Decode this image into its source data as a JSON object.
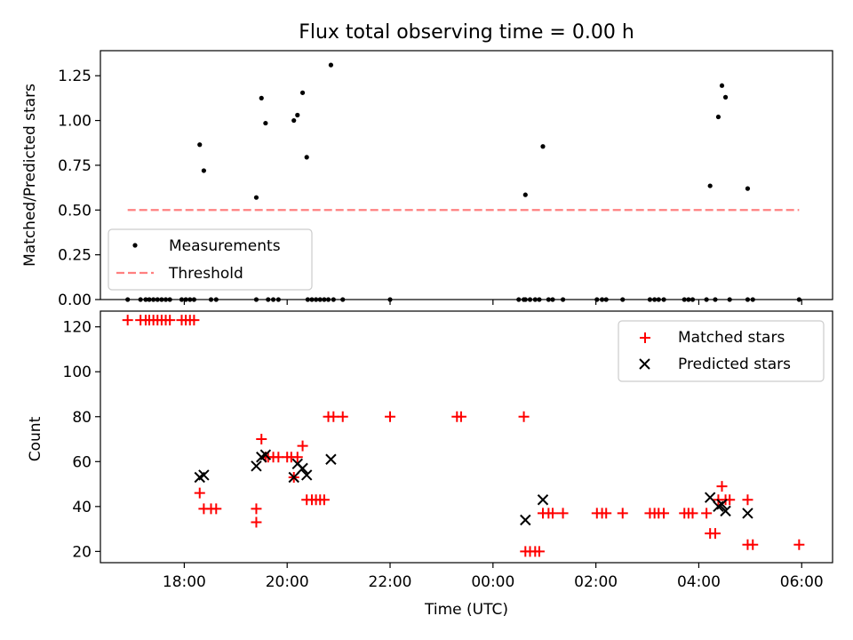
{
  "chart_data": [
    {
      "type": "scatter",
      "title": "Flux total observing time = 0.00 h",
      "xlabel": "",
      "ylabel": "Matched/Predicted stars",
      "xlim": [
        16.37,
        30.6
      ],
      "ylim": [
        0,
        1.39
      ],
      "yticks": [
        0.0,
        0.25,
        0.5,
        0.75,
        1.0,
        1.25
      ],
      "ytick_labels": [
        "0.00",
        "0.25",
        "0.50",
        "0.75",
        "1.00",
        "1.25"
      ],
      "legend": {
        "placement": "lower-left",
        "entries": [
          "Measurements",
          "Threshold"
        ]
      },
      "series": [
        {
          "name": "Measurements",
          "color": "#000000",
          "marker": "dot",
          "points": [
            [
              16.9,
              0
            ],
            [
              17.15,
              0
            ],
            [
              17.25,
              0
            ],
            [
              17.32,
              0
            ],
            [
              17.4,
              0
            ],
            [
              17.48,
              0
            ],
            [
              17.56,
              0
            ],
            [
              17.64,
              0
            ],
            [
              17.72,
              0
            ],
            [
              17.95,
              0
            ],
            [
              18.03,
              0
            ],
            [
              18.11,
              0
            ],
            [
              18.19,
              0
            ],
            [
              18.3,
              0.865
            ],
            [
              18.38,
              0.72
            ],
            [
              18.52,
              0
            ],
            [
              18.62,
              0
            ],
            [
              19.4,
              0.57
            ],
            [
              19.4,
              0
            ],
            [
              19.5,
              1.125
            ],
            [
              19.58,
              0.985
            ],
            [
              19.63,
              0
            ],
            [
              19.73,
              0
            ],
            [
              19.83,
              0
            ],
            [
              20.13,
              1.0
            ],
            [
              20.2,
              1.03
            ],
            [
              20.3,
              1.155
            ],
            [
              20.38,
              0.795
            ],
            [
              20.4,
              0
            ],
            [
              20.48,
              0
            ],
            [
              20.56,
              0
            ],
            [
              20.64,
              0
            ],
            [
              20.72,
              0
            ],
            [
              20.8,
              0
            ],
            [
              20.85,
              1.31
            ],
            [
              20.9,
              0
            ],
            [
              21.08,
              0
            ],
            [
              22.0,
              0
            ],
            [
              24.5,
              0
            ],
            [
              24.6,
              0
            ],
            [
              24.63,
              0.585
            ],
            [
              24.63,
              0
            ],
            [
              24.72,
              0
            ],
            [
              24.82,
              0
            ],
            [
              24.9,
              0
            ],
            [
              24.97,
              0.855
            ],
            [
              25.08,
              0
            ],
            [
              25.16,
              0
            ],
            [
              25.36,
              0
            ],
            [
              26.02,
              0
            ],
            [
              26.12,
              0
            ],
            [
              26.2,
              0
            ],
            [
              26.52,
              0
            ],
            [
              27.05,
              0
            ],
            [
              27.14,
              0
            ],
            [
              27.22,
              0
            ],
            [
              27.32,
              0
            ],
            [
              27.72,
              0
            ],
            [
              27.8,
              0
            ],
            [
              27.88,
              0
            ],
            [
              28.15,
              0
            ],
            [
              28.22,
              0.635
            ],
            [
              28.32,
              0
            ],
            [
              28.38,
              1.02
            ],
            [
              28.45,
              1.195
            ],
            [
              28.52,
              1.13
            ],
            [
              28.6,
              0
            ],
            [
              28.95,
              0.62
            ],
            [
              28.95,
              0
            ],
            [
              29.05,
              0
            ],
            [
              29.95,
              0
            ]
          ]
        },
        {
          "name": "Threshold",
          "color": "#ff8080",
          "line": "dashed",
          "points": [
            [
              16.9,
              0.5
            ],
            [
              29.95,
              0.5
            ]
          ]
        }
      ]
    },
    {
      "type": "scatter",
      "title": "",
      "xlabel": "Time (UTC)",
      "ylabel": "Count",
      "xlim": [
        16.37,
        30.6
      ],
      "ylim": [
        15,
        127
      ],
      "yticks": [
        20,
        40,
        60,
        80,
        100,
        120
      ],
      "ytick_labels": [
        "20",
        "40",
        "60",
        "80",
        "100",
        "120"
      ],
      "xticks": [
        18,
        20,
        22,
        24,
        26,
        28,
        30
      ],
      "xtick_labels": [
        "18:00",
        "20:00",
        "22:00",
        "00:00",
        "02:00",
        "04:00",
        "06:00"
      ],
      "legend": {
        "placement": "top-right",
        "entries": [
          "Matched stars",
          "Predicted stars"
        ]
      },
      "series": [
        {
          "name": "Matched stars",
          "color": "#ff0000",
          "marker": "plus",
          "points": [
            [
              16.9,
              123
            ],
            [
              17.15,
              123
            ],
            [
              17.25,
              123
            ],
            [
              17.32,
              123
            ],
            [
              17.4,
              123
            ],
            [
              17.48,
              123
            ],
            [
              17.56,
              123
            ],
            [
              17.64,
              123
            ],
            [
              17.72,
              123
            ],
            [
              17.95,
              123
            ],
            [
              18.03,
              123
            ],
            [
              18.11,
              123
            ],
            [
              18.19,
              123
            ],
            [
              18.3,
              46
            ],
            [
              18.38,
              39
            ],
            [
              18.52,
              39
            ],
            [
              18.62,
              39
            ],
            [
              19.4,
              39
            ],
            [
              19.4,
              33
            ],
            [
              19.5,
              70
            ],
            [
              19.58,
              62
            ],
            [
              19.63,
              62
            ],
            [
              19.73,
              62
            ],
            [
              19.83,
              62
            ],
            [
              20.0,
              62
            ],
            [
              20.08,
              62
            ],
            [
              20.13,
              53
            ],
            [
              20.2,
              62
            ],
            [
              20.3,
              67
            ],
            [
              20.38,
              43
            ],
            [
              20.48,
              43
            ],
            [
              20.56,
              43
            ],
            [
              20.64,
              43
            ],
            [
              20.72,
              43
            ],
            [
              20.8,
              80
            ],
            [
              20.9,
              80
            ],
            [
              21.08,
              80
            ],
            [
              22.0,
              80
            ],
            [
              23.3,
              80
            ],
            [
              23.38,
              80
            ],
            [
              24.6,
              80
            ],
            [
              24.63,
              20
            ],
            [
              24.72,
              20
            ],
            [
              24.82,
              20
            ],
            [
              24.9,
              20
            ],
            [
              24.97,
              37
            ],
            [
              25.08,
              37
            ],
            [
              25.16,
              37
            ],
            [
              25.36,
              37
            ],
            [
              26.02,
              37
            ],
            [
              26.12,
              37
            ],
            [
              26.2,
              37
            ],
            [
              26.52,
              37
            ],
            [
              27.05,
              37
            ],
            [
              27.14,
              37
            ],
            [
              27.22,
              37
            ],
            [
              27.32,
              37
            ],
            [
              27.72,
              37
            ],
            [
              27.8,
              37
            ],
            [
              27.88,
              37
            ],
            [
              28.15,
              37
            ],
            [
              28.22,
              28
            ],
            [
              28.32,
              28
            ],
            [
              28.38,
              43
            ],
            [
              28.45,
              49
            ],
            [
              28.52,
              43
            ],
            [
              28.6,
              43
            ],
            [
              28.95,
              43
            ],
            [
              28.95,
              23
            ],
            [
              29.05,
              23
            ],
            [
              29.95,
              23
            ]
          ]
        },
        {
          "name": "Predicted stars",
          "color": "#000000",
          "marker": "cross",
          "points": [
            [
              18.3,
              53
            ],
            [
              18.38,
              54
            ],
            [
              19.4,
              58
            ],
            [
              19.5,
              62
            ],
            [
              19.58,
              63
            ],
            [
              20.13,
              53
            ],
            [
              20.2,
              59
            ],
            [
              20.3,
              57
            ],
            [
              20.38,
              54
            ],
            [
              20.85,
              61
            ],
            [
              24.63,
              34
            ],
            [
              24.97,
              43
            ],
            [
              28.22,
              44
            ],
            [
              28.38,
              40
            ],
            [
              28.45,
              41
            ],
            [
              28.52,
              38
            ],
            [
              28.95,
              37
            ]
          ]
        }
      ]
    }
  ]
}
